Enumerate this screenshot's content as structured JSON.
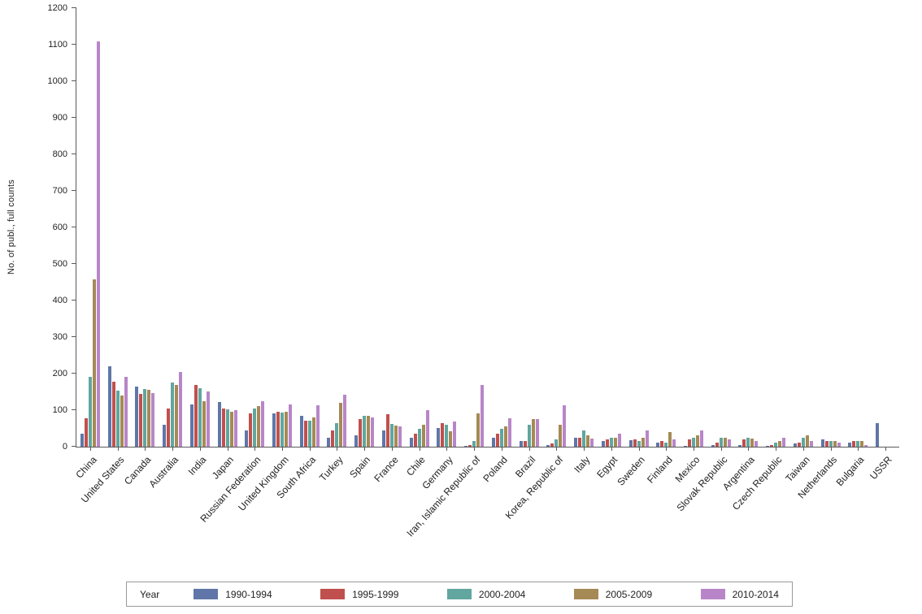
{
  "chart_data": {
    "type": "bar",
    "title": "",
    "xlabel": "",
    "ylabel": "No. of publ., full counts",
    "ylim": [
      0,
      1200
    ],
    "yticks": [
      0,
      100,
      200,
      300,
      400,
      500,
      600,
      700,
      800,
      900,
      1000,
      1100,
      1200
    ],
    "grid": false,
    "legend_title": "Year",
    "legend_position": "bottom",
    "categories": [
      "China",
      "United States",
      "Canada",
      "Australia",
      "India",
      "Japan",
      "Russian Federation",
      "United Kingdom",
      "South Africa",
      "Turkey",
      "Spain",
      "France",
      "Chile",
      "Germany",
      "Iran, Islamic Republic of",
      "Poland",
      "Brazil",
      "Korea, Republic of",
      "Italy",
      "Egypt",
      "Sweden",
      "Finland",
      "Mexico",
      "Slovak Republic",
      "Argentina",
      "Czech Republic",
      "Taiwan",
      "Netherlands",
      "Bulgaria",
      "USSR"
    ],
    "series": [
      {
        "name": "1990-1994",
        "color": "#6076a8",
        "values": [
          35,
          220,
          165,
          60,
          115,
          122,
          45,
          92,
          85,
          25,
          30,
          45,
          25,
          50,
          2,
          25,
          15,
          5,
          25,
          15,
          18,
          10,
          3,
          5,
          5,
          2,
          8,
          20,
          10,
          65
        ]
      },
      {
        "name": "1995-1999",
        "color": "#c0504d",
        "values": [
          78,
          178,
          145,
          105,
          168,
          105,
          90,
          95,
          70,
          45,
          75,
          88,
          35,
          65,
          5,
          35,
          15,
          8,
          25,
          20,
          20,
          15,
          20,
          10,
          20,
          5,
          10,
          15,
          15,
          0
        ]
      },
      {
        "name": "2000-2004",
        "color": "#61a69f",
        "values": [
          190,
          153,
          158,
          175,
          160,
          102,
          105,
          93,
          72,
          65,
          85,
          62,
          48,
          60,
          15,
          48,
          60,
          20,
          45,
          25,
          15,
          10,
          25,
          25,
          25,
          10,
          25,
          15,
          15,
          0
        ]
      },
      {
        "name": "2005-2009",
        "color": "#a58a55",
        "values": [
          458,
          140,
          155,
          168,
          125,
          95,
          112,
          95,
          80,
          120,
          85,
          57,
          60,
          42,
          90,
          55,
          75,
          60,
          30,
          25,
          25,
          40,
          30,
          25,
          22,
          15,
          30,
          15,
          15,
          0
        ]
      },
      {
        "name": "2010-2014",
        "color": "#b886c8",
        "values": [
          1108,
          190,
          147,
          205,
          152,
          100,
          125,
          115,
          113,
          143,
          80,
          55,
          100,
          68,
          168,
          78,
          75,
          113,
          22,
          35,
          45,
          20,
          45,
          20,
          15,
          25,
          15,
          10,
          5,
          0
        ]
      }
    ]
  }
}
